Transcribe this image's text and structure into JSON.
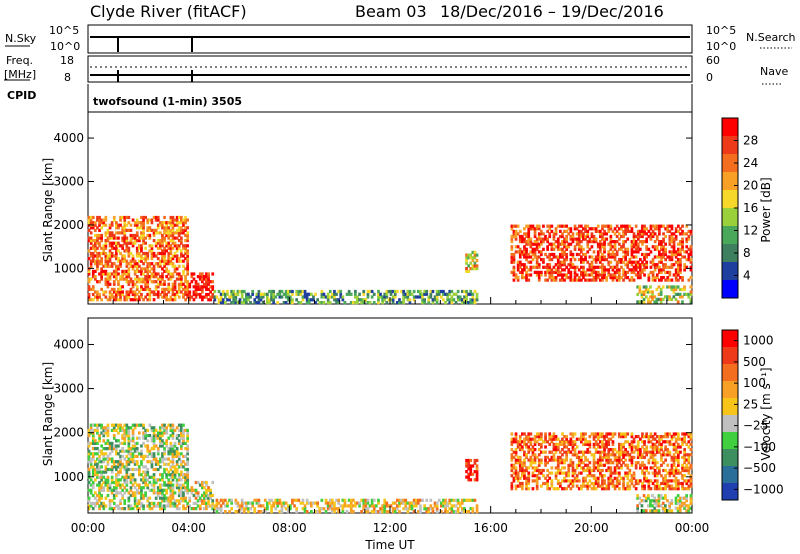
{
  "header": {
    "station": "Clyde River (fitACF)",
    "beam": "Beam 03",
    "date_range": "18/Dec/2016 – 19/Dec/2016"
  },
  "aux_panels": {
    "nsky_label": "N.Sky",
    "nsky_ticks": [
      "10^5",
      "10^0"
    ],
    "nsearch_label": "N.Search",
    "freq_label_1": "Freq.",
    "freq_label_2": "[MHz]",
    "freq_ticks": [
      "18",
      "8"
    ],
    "nave_label": "Nave",
    "nave_ticks": [
      "60",
      "0"
    ],
    "cpid_label": "CPID",
    "cpid_text": "twofsound (1-min) 3505"
  },
  "chart_data": [
    {
      "type": "heatmap",
      "panel": "power",
      "xlabel": "Time UT",
      "ylabel": "Slant Range [km]",
      "x_ticks": [
        "00:00",
        "04:00",
        "08:00",
        "12:00",
        "16:00",
        "20:00",
        "00:00"
      ],
      "xlim_hours": [
        0,
        24
      ],
      "ylim": [
        180,
        4600
      ],
      "y_ticks": [
        1000,
        2000,
        3000,
        4000
      ],
      "colorbar": {
        "label": "Power [dB]",
        "ticks": [
          "4",
          "8",
          "12",
          "16",
          "20",
          "24",
          "28"
        ],
        "colors": [
          "#0000ff",
          "#1f3f9f",
          "#3d7f5f",
          "#4aa85a",
          "#9ad13a",
          "#f6d82a",
          "#f7a025",
          "#f46e1f",
          "#ef3a1a",
          "#ff0000"
        ]
      },
      "regions": [
        {
          "t": [
            0.0,
            4.0
          ],
          "r": [
            250,
            2200
          ],
          "level": 0.75
        },
        {
          "t": [
            4.0,
            5.0
          ],
          "r": [
            250,
            900
          ],
          "level": 0.95
        },
        {
          "t": [
            5.0,
            15.5
          ],
          "r": [
            180,
            500
          ],
          "level": 0.35
        },
        {
          "t": [
            15.0,
            15.5
          ],
          "r": [
            900,
            1400
          ],
          "level": 0.6
        },
        {
          "t": [
            16.8,
            24.0
          ],
          "r": [
            700,
            2000
          ],
          "level": 0.85
        },
        {
          "t": [
            21.8,
            24.0
          ],
          "r": [
            200,
            600
          ],
          "level": 0.5
        }
      ]
    },
    {
      "type": "heatmap",
      "panel": "velocity",
      "xlabel": "Time UT",
      "ylabel": "Slant Range [km]",
      "x_ticks": [
        "00:00",
        "04:00",
        "08:00",
        "12:00",
        "16:00",
        "20:00",
        "00:00"
      ],
      "xlim_hours": [
        0,
        24
      ],
      "ylim": [
        180,
        4600
      ],
      "y_ticks": [
        1000,
        2000,
        3000,
        4000
      ],
      "colorbar": {
        "label": "Velocity [m s⁻¹]",
        "ticks": [
          "1000",
          "500",
          "100",
          "25",
          "−25",
          "−100",
          "−500",
          "−1000"
        ],
        "colors": [
          "#1f3fb0",
          "#2a6f9a",
          "#3d8f5f",
          "#3fcf3f",
          "#c0c0c0",
          "#f7c51a",
          "#f7a025",
          "#f46e1f",
          "#ef3a1a",
          "#ff0000"
        ]
      },
      "regions": [
        {
          "t": [
            0.0,
            4.0
          ],
          "r": [
            250,
            2200
          ],
          "level": 0.45
        },
        {
          "t": [
            4.0,
            5.0
          ],
          "r": [
            250,
            900
          ],
          "level": 0.5
        },
        {
          "t": [
            5.0,
            15.5
          ],
          "r": [
            180,
            500
          ],
          "level": 0.55
        },
        {
          "t": [
            15.0,
            15.5
          ],
          "r": [
            900,
            1400
          ],
          "level": 0.9
        },
        {
          "t": [
            16.8,
            24.0
          ],
          "r": [
            700,
            2000
          ],
          "level": 0.75
        },
        {
          "t": [
            21.8,
            24.0
          ],
          "r": [
            200,
            600
          ],
          "level": 0.5
        }
      ]
    }
  ]
}
